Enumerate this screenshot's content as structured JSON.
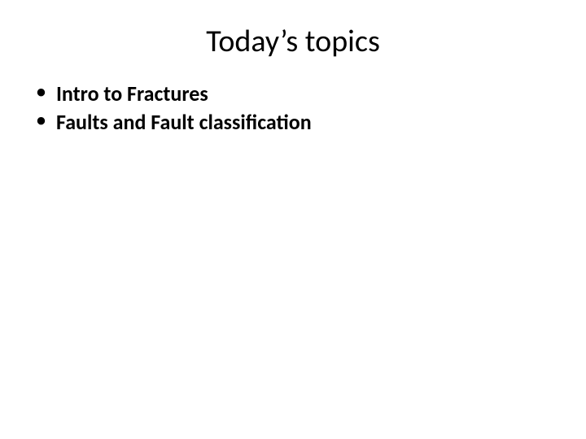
{
  "slide": {
    "title": "Today’s topics",
    "title_fontsize": 38,
    "title_fontweight": 400,
    "background_color": "#ffffff",
    "text_color": "#000000",
    "bullets": [
      {
        "text": "Intro to Fractures"
      },
      {
        "text": "Faults and Fault classification"
      }
    ],
    "bullet_fontsize": 26,
    "bullet_fontweight": 700
  }
}
